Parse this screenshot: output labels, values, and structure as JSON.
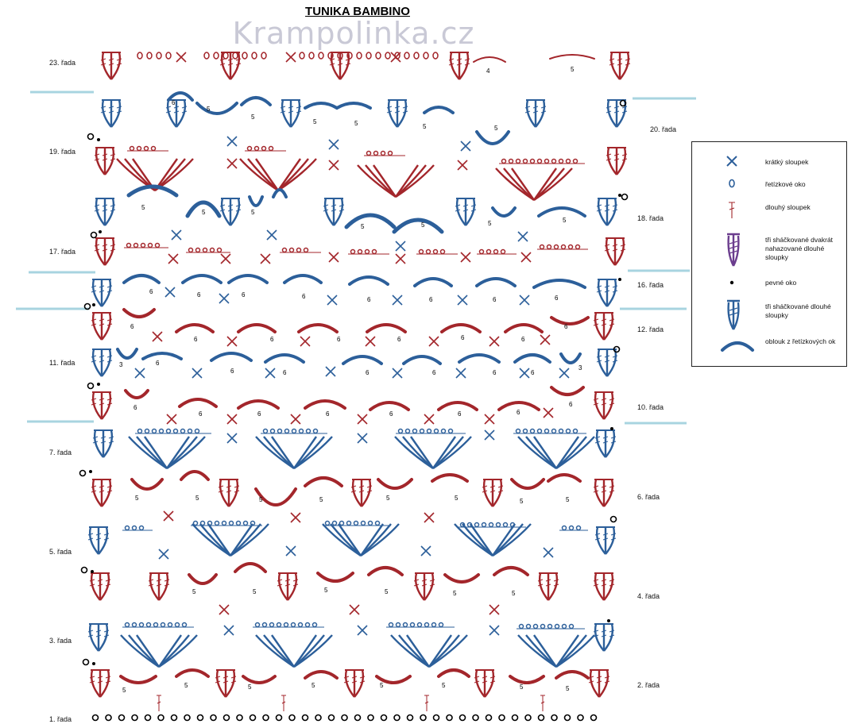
{
  "title": "TUNIKA BAMBINO",
  "watermark": "Krampolinka.cz",
  "colors": {
    "red": "#a3262b",
    "blue": "#2c5f9a",
    "purple": "#6b3d8e",
    "line": "#a8d4e0",
    "black": "#000000"
  },
  "rows_left": [
    "23. řada",
    "19. řada",
    "17. řada",
    "11. řada",
    "7. řada",
    "5. řada",
    "3. řada",
    "1. řada"
  ],
  "rows_right": [
    "20. řada",
    "18. řada",
    "16. řada",
    "12. řada",
    "10. řada",
    "6. řada",
    "4. řada",
    "2. řada"
  ],
  "legend": {
    "items": [
      {
        "label": "krátký sloupek",
        "icon": "x-mark-icon"
      },
      {
        "label": "řetízkové oko",
        "icon": "oval-icon"
      },
      {
        "label": "dlouhý sloupek",
        "icon": "long-stitch-icon"
      },
      {
        "label": "tři sháčkované dvakrát nahazované dlouhé sloupky",
        "icon": "purple-cluster-icon"
      },
      {
        "label": "pevné oko",
        "icon": "dot-icon"
      },
      {
        "label": "tři sháčkované dlouhé sloupky",
        "icon": "blue-cluster-icon"
      },
      {
        "label": "oblouk z řetízkových ok",
        "icon": "arc-icon"
      }
    ]
  },
  "arc_counts": [
    "3",
    "4",
    "5",
    "6"
  ]
}
